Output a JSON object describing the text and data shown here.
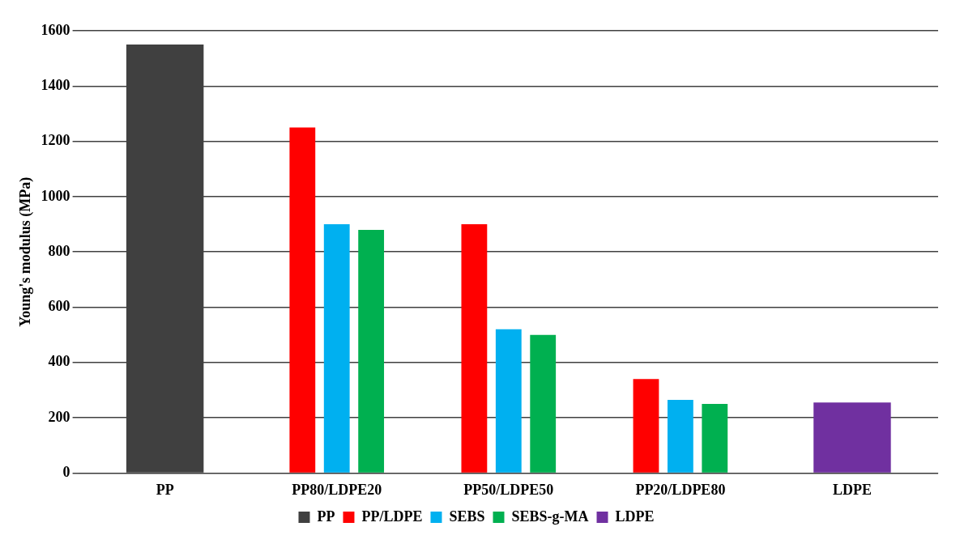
{
  "chart_data": {
    "type": "bar",
    "ylabel": "Young's modulus (MPa)",
    "categories": [
      "PP",
      "PP80/LDPE20",
      "PP50/LDPE50",
      "PP20/LDPE80",
      "LDPE"
    ],
    "series": [
      {
        "name": "PP",
        "color": "#404040",
        "values": [
          1550,
          null,
          null,
          null,
          null
        ]
      },
      {
        "name": "PP/LDPE",
        "color": "#ff0000",
        "values": [
          null,
          1250,
          900,
          340,
          null
        ]
      },
      {
        "name": "SEBS",
        "color": "#00b0f0",
        "values": [
          null,
          900,
          520,
          265,
          null
        ]
      },
      {
        "name": "SEBS-g-MA",
        "color": "#00b050",
        "values": [
          null,
          880,
          500,
          250,
          null
        ]
      },
      {
        "name": "LDPE",
        "color": "#7030a0",
        "values": [
          null,
          null,
          null,
          null,
          255
        ]
      }
    ],
    "ylim": [
      0,
      1600
    ],
    "yticks": [
      0,
      200,
      400,
      600,
      800,
      1000,
      1200,
      1400,
      1600
    ],
    "grid": "y",
    "legend": "bottom"
  }
}
